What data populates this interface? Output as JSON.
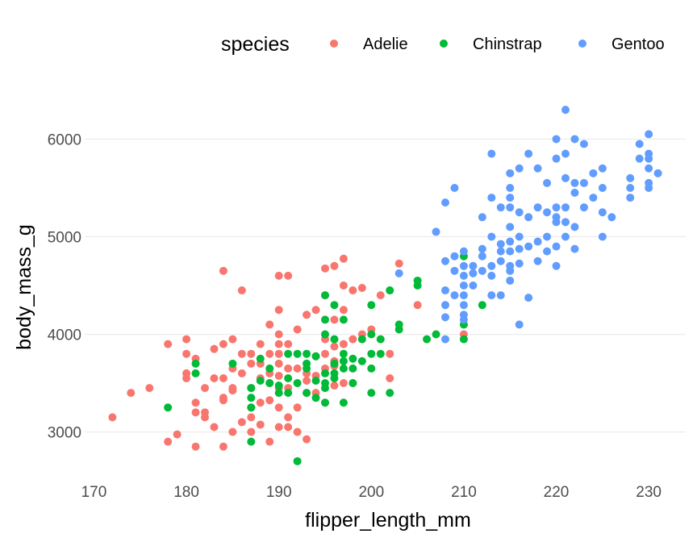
{
  "chart_data": {
    "type": "scatter",
    "xlabel": "flipper_length_mm",
    "ylabel": "body_mass_g",
    "xlim": [
      169,
      234
    ],
    "ylim": [
      2550,
      6450
    ],
    "x_ticks": [
      "170",
      "180",
      "190",
      "200",
      "210",
      "220",
      "230"
    ],
    "y_ticks": [
      "3000",
      "4000",
      "5000",
      "6000"
    ],
    "grid": true,
    "legend": {
      "title": "species",
      "position": "top-right"
    },
    "series": [
      {
        "name": "Adelie",
        "color": "#F8766D",
        "points": [
          [
            172,
            3150
          ],
          [
            174,
            3400
          ],
          [
            176,
            3450
          ],
          [
            178,
            3900
          ],
          [
            178,
            2900
          ],
          [
            179,
            2975
          ],
          [
            180,
            3950
          ],
          [
            180,
            3800
          ],
          [
            180,
            3600
          ],
          [
            180,
            3550
          ],
          [
            181,
            3300
          ],
          [
            181,
            3200
          ],
          [
            181,
            3750
          ],
          [
            181,
            2850
          ],
          [
            182,
            3450
          ],
          [
            182,
            3200
          ],
          [
            182,
            3150
          ],
          [
            183,
            3550
          ],
          [
            183,
            3050
          ],
          [
            184,
            3900
          ],
          [
            184,
            3550
          ],
          [
            184,
            3350
          ],
          [
            184,
            3325
          ],
          [
            184,
            2850
          ],
          [
            185,
            3950
          ],
          [
            185,
            3650
          ],
          [
            185,
            3450
          ],
          [
            185,
            3000
          ],
          [
            186,
            3800
          ],
          [
            186,
            4450
          ],
          [
            186,
            3100
          ],
          [
            187,
            3700
          ],
          [
            187,
            3800
          ],
          [
            187,
            3450
          ],
          [
            187,
            3250
          ],
          [
            187,
            3150
          ],
          [
            187,
            3000
          ],
          [
            188,
            3900
          ],
          [
            188,
            3550
          ],
          [
            188,
            3300
          ],
          [
            188,
            3075
          ],
          [
            189,
            4100
          ],
          [
            189,
            3800
          ],
          [
            189,
            3600
          ],
          [
            189,
            3500
          ],
          [
            189,
            3325
          ],
          [
            189,
            2900
          ],
          [
            190,
            4600
          ],
          [
            190,
            4250
          ],
          [
            190,
            4000
          ],
          [
            190,
            3900
          ],
          [
            190,
            3800
          ],
          [
            190,
            3700
          ],
          [
            190,
            3575
          ],
          [
            190,
            3450
          ],
          [
            190,
            3250
          ],
          [
            190,
            3050
          ],
          [
            191,
            4600
          ],
          [
            191,
            3900
          ],
          [
            191,
            3650
          ],
          [
            191,
            3450
          ],
          [
            191,
            3150
          ],
          [
            191,
            3050
          ],
          [
            192,
            4050
          ],
          [
            192,
            3650
          ],
          [
            192,
            3250
          ],
          [
            192,
            3000
          ],
          [
            193,
            4200
          ],
          [
            193,
            3600
          ],
          [
            193,
            3525
          ],
          [
            193,
            3400
          ],
          [
            193,
            2925
          ],
          [
            194,
            4250
          ],
          [
            194,
            3775
          ],
          [
            194,
            3575
          ],
          [
            194,
            3400
          ],
          [
            195,
            4675
          ],
          [
            195,
            4400
          ],
          [
            195,
            3950
          ],
          [
            195,
            3800
          ],
          [
            195,
            3650
          ],
          [
            195,
            3300
          ],
          [
            196,
            4700
          ],
          [
            196,
            4150
          ],
          [
            196,
            3875
          ],
          [
            196,
            3675
          ],
          [
            196,
            3475
          ],
          [
            197,
            4775
          ],
          [
            197,
            4500
          ],
          [
            197,
            4250
          ],
          [
            197,
            3900
          ],
          [
            197,
            3500
          ],
          [
            198,
            4450
          ],
          [
            198,
            3950
          ],
          [
            198,
            3500
          ],
          [
            199,
            4475
          ],
          [
            199,
            4000
          ],
          [
            200,
            4050
          ],
          [
            201,
            4400
          ],
          [
            202,
            3800
          ],
          [
            202,
            3550
          ],
          [
            203,
            4725
          ],
          [
            205,
            4300
          ],
          [
            210,
            4000
          ],
          [
            184,
            4650
          ],
          [
            183,
            3850
          ],
          [
            185,
            3425
          ],
          [
            186,
            3600
          ],
          [
            188,
            3700
          ],
          [
            196,
            3725
          ]
        ]
      },
      {
        "name": "Chinstrap",
        "color": "#00BA38",
        "points": [
          [
            178,
            3250
          ],
          [
            181,
            3700
          ],
          [
            181,
            3600
          ],
          [
            185,
            3700
          ],
          [
            187,
            3350
          ],
          [
            187,
            3250
          ],
          [
            187,
            2900
          ],
          [
            188,
            3525
          ],
          [
            189,
            3650
          ],
          [
            190,
            3475
          ],
          [
            190,
            3400
          ],
          [
            191,
            3800
          ],
          [
            191,
            3400
          ],
          [
            192,
            2700
          ],
          [
            192,
            3500
          ],
          [
            193,
            3800
          ],
          [
            193,
            3650
          ],
          [
            193,
            3400
          ],
          [
            194,
            3775
          ],
          [
            194,
            3525
          ],
          [
            194,
            3350
          ],
          [
            195,
            4400
          ],
          [
            195,
            4150
          ],
          [
            195,
            4000
          ],
          [
            195,
            3600
          ],
          [
            195,
            3450
          ],
          [
            195,
            3300
          ],
          [
            196,
            4300
          ],
          [
            196,
            3950
          ],
          [
            196,
            3700
          ],
          [
            196,
            3550
          ],
          [
            197,
            4150
          ],
          [
            197,
            3725
          ],
          [
            197,
            3300
          ],
          [
            198,
            3750
          ],
          [
            198,
            3500
          ],
          [
            199,
            3950
          ],
          [
            199,
            3725
          ],
          [
            200,
            4300
          ],
          [
            200,
            3650
          ],
          [
            200,
            3400
          ],
          [
            201,
            3950
          ],
          [
            201,
            3800
          ],
          [
            202,
            4450
          ],
          [
            202,
            3400
          ],
          [
            203,
            4100
          ],
          [
            203,
            4050
          ],
          [
            205,
            4550
          ],
          [
            205,
            4500
          ],
          [
            206,
            3950
          ],
          [
            207,
            4000
          ],
          [
            210,
            4800
          ],
          [
            210,
            4100
          ],
          [
            210,
            3950
          ],
          [
            212,
            4300
          ],
          [
            198,
            3650
          ],
          [
            200,
            3800
          ],
          [
            197,
            3650
          ],
          [
            193,
            3700
          ],
          [
            188,
            3750
          ],
          [
            187,
            3450
          ],
          [
            191,
            3550
          ],
          [
            195,
            3500
          ],
          [
            192,
            3800
          ],
          [
            200,
            4000
          ],
          [
            189,
            3500
          ],
          [
            196,
            3600
          ],
          [
            197,
            3800
          ]
        ]
      },
      {
        "name": "Gentoo",
        "color": "#619CFF",
        "points": [
          [
            203,
            4625
          ],
          [
            207,
            5050
          ],
          [
            208,
            5350
          ],
          [
            208,
            4750
          ],
          [
            208,
            4450
          ],
          [
            208,
            4300
          ],
          [
            208,
            4175
          ],
          [
            208,
            3950
          ],
          [
            209,
            5500
          ],
          [
            209,
            4800
          ],
          [
            209,
            4650
          ],
          [
            209,
            4400
          ],
          [
            210,
            4850
          ],
          [
            210,
            4700
          ],
          [
            210,
            4600
          ],
          [
            210,
            4500
          ],
          [
            210,
            4400
          ],
          [
            210,
            4300
          ],
          [
            210,
            4200
          ],
          [
            210,
            4150
          ],
          [
            211,
            4700
          ],
          [
            211,
            4625
          ],
          [
            211,
            4500
          ],
          [
            212,
            5200
          ],
          [
            212,
            4875
          ],
          [
            212,
            4800
          ],
          [
            212,
            4650
          ],
          [
            213,
            5850
          ],
          [
            213,
            5400
          ],
          [
            213,
            5000
          ],
          [
            213,
            4700
          ],
          [
            213,
            4600
          ],
          [
            213,
            4400
          ],
          [
            214,
            5300
          ],
          [
            214,
            4925
          ],
          [
            214,
            4850
          ],
          [
            214,
            4750
          ],
          [
            214,
            4400
          ],
          [
            215,
            5650
          ],
          [
            215,
            5500
          ],
          [
            215,
            5400
          ],
          [
            215,
            5300
          ],
          [
            215,
            5100
          ],
          [
            215,
            4950
          ],
          [
            215,
            4850
          ],
          [
            215,
            4700
          ],
          [
            215,
            4650
          ],
          [
            215,
            4550
          ],
          [
            216,
            5700
          ],
          [
            216,
            5250
          ],
          [
            216,
            5000
          ],
          [
            216,
            4875
          ],
          [
            216,
            4725
          ],
          [
            216,
            4100
          ],
          [
            217,
            5850
          ],
          [
            217,
            5200
          ],
          [
            217,
            4900
          ],
          [
            217,
            4375
          ],
          [
            218,
            5700
          ],
          [
            218,
            5300
          ],
          [
            218,
            4950
          ],
          [
            218,
            4750
          ],
          [
            219,
            5550
          ],
          [
            219,
            5250
          ],
          [
            219,
            5000
          ],
          [
            219,
            4850
          ],
          [
            220,
            6000
          ],
          [
            220,
            5800
          ],
          [
            220,
            5300
          ],
          [
            220,
            5200
          ],
          [
            220,
            5150
          ],
          [
            220,
            4900
          ],
          [
            220,
            4700
          ],
          [
            221,
            6300
          ],
          [
            221,
            5850
          ],
          [
            221,
            5600
          ],
          [
            221,
            5300
          ],
          [
            221,
            5150
          ],
          [
            221,
            5000
          ],
          [
            222,
            6000
          ],
          [
            222,
            5550
          ],
          [
            222,
            5450
          ],
          [
            222,
            5100
          ],
          [
            222,
            4875
          ],
          [
            223,
            5950
          ],
          [
            223,
            5550
          ],
          [
            223,
            5300
          ],
          [
            224,
            5650
          ],
          [
            224,
            5400
          ],
          [
            225,
            5700
          ],
          [
            225,
            5500
          ],
          [
            225,
            5250
          ],
          [
            225,
            5000
          ],
          [
            226,
            5200
          ],
          [
            228,
            5600
          ],
          [
            228,
            5500
          ],
          [
            228,
            5400
          ],
          [
            229,
            5950
          ],
          [
            229,
            5800
          ],
          [
            230,
            6050
          ],
          [
            230,
            5850
          ],
          [
            230,
            5800
          ],
          [
            230,
            5700
          ],
          [
            230,
            5550
          ],
          [
            230,
            5500
          ],
          [
            231,
            5650
          ]
        ]
      }
    ]
  }
}
